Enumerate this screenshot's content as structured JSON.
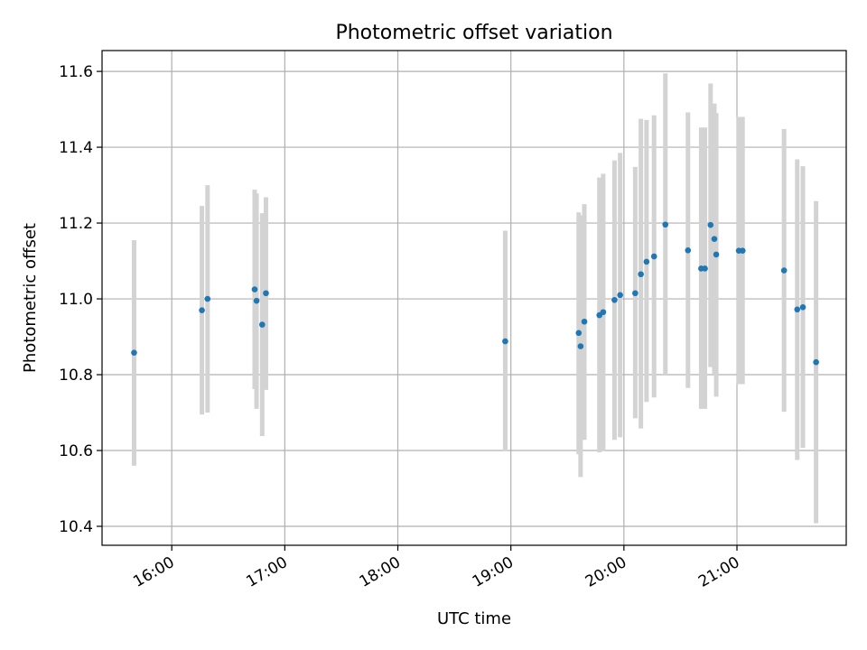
{
  "chart_data": {
    "type": "scatter",
    "title": "Photometric offset variation",
    "xlabel": "UTC time",
    "ylabel": "Photometric offset",
    "xlim": [
      "15:23",
      "21:58"
    ],
    "ylim": [
      10.35,
      11.655
    ],
    "x_ticks": [
      "16:00",
      "17:00",
      "18:00",
      "19:00",
      "20:00",
      "21:00"
    ],
    "y_ticks": [
      "10.4",
      "10.6",
      "10.8",
      "11.0",
      "11.2",
      "11.4",
      "11.6"
    ],
    "grid": true,
    "marker_color": "#1f77b4",
    "errorbar_color": "#d3d3d3",
    "points": [
      {
        "t": "15:40",
        "y": 10.858,
        "lo": 10.56,
        "hi": 11.155
      },
      {
        "t": "16:16",
        "y": 10.97,
        "lo": 10.695,
        "hi": 11.245
      },
      {
        "t": "16:19",
        "y": 11.0,
        "lo": 10.7,
        "hi": 11.3
      },
      {
        "t": "16:44",
        "y": 11.025,
        "lo": 10.762,
        "hi": 11.288
      },
      {
        "t": "16:45",
        "y": 10.995,
        "lo": 10.71,
        "hi": 11.278
      },
      {
        "t": "16:48",
        "y": 10.932,
        "lo": 10.638,
        "hi": 11.226
      },
      {
        "t": "16:50",
        "y": 11.015,
        "lo": 10.76,
        "hi": 11.268
      },
      {
        "t": "18:57",
        "y": 10.888,
        "lo": 10.598,
        "hi": 11.18
      },
      {
        "t": "19:36",
        "y": 10.91,
        "lo": 10.59,
        "hi": 11.228
      },
      {
        "t": "19:37",
        "y": 10.875,
        "lo": 10.53,
        "hi": 11.22
      },
      {
        "t": "19:39",
        "y": 10.94,
        "lo": 10.628,
        "hi": 11.25
      },
      {
        "t": "19:47",
        "y": 10.957,
        "lo": 10.595,
        "hi": 11.32
      },
      {
        "t": "19:49",
        "y": 10.965,
        "lo": 10.598,
        "hi": 11.33
      },
      {
        "t": "19:55",
        "y": 10.997,
        "lo": 10.628,
        "hi": 11.365
      },
      {
        "t": "19:58",
        "y": 11.01,
        "lo": 10.635,
        "hi": 11.385
      },
      {
        "t": "20:06",
        "y": 11.015,
        "lo": 10.685,
        "hi": 11.348
      },
      {
        "t": "20:09",
        "y": 11.065,
        "lo": 10.658,
        "hi": 11.475
      },
      {
        "t": "20:12",
        "y": 11.098,
        "lo": 10.728,
        "hi": 11.472
      },
      {
        "t": "20:16",
        "y": 11.112,
        "lo": 10.74,
        "hi": 11.484
      },
      {
        "t": "20:22",
        "y": 11.196,
        "lo": 10.8,
        "hi": 11.595
      },
      {
        "t": "20:34",
        "y": 11.128,
        "lo": 10.765,
        "hi": 11.492
      },
      {
        "t": "20:41",
        "y": 11.08,
        "lo": 10.71,
        "hi": 11.452
      },
      {
        "t": "20:43",
        "y": 11.08,
        "lo": 10.71,
        "hi": 11.452
      },
      {
        "t": "20:46",
        "y": 11.195,
        "lo": 10.82,
        "hi": 11.568
      },
      {
        "t": "20:48",
        "y": 11.158,
        "lo": 10.8,
        "hi": 11.515
      },
      {
        "t": "20:49",
        "y": 11.117,
        "lo": 10.742,
        "hi": 11.49
      },
      {
        "t": "21:01",
        "y": 11.127,
        "lo": 10.775,
        "hi": 11.48
      },
      {
        "t": "21:03",
        "y": 11.127,
        "lo": 10.775,
        "hi": 11.48
      },
      {
        "t": "21:25",
        "y": 11.075,
        "lo": 10.702,
        "hi": 11.448
      },
      {
        "t": "21:32",
        "y": 10.972,
        "lo": 10.575,
        "hi": 11.368
      },
      {
        "t": "21:35",
        "y": 10.978,
        "lo": 10.607,
        "hi": 11.35
      },
      {
        "t": "21:42",
        "y": 10.833,
        "lo": 10.408,
        "hi": 11.258
      }
    ]
  }
}
